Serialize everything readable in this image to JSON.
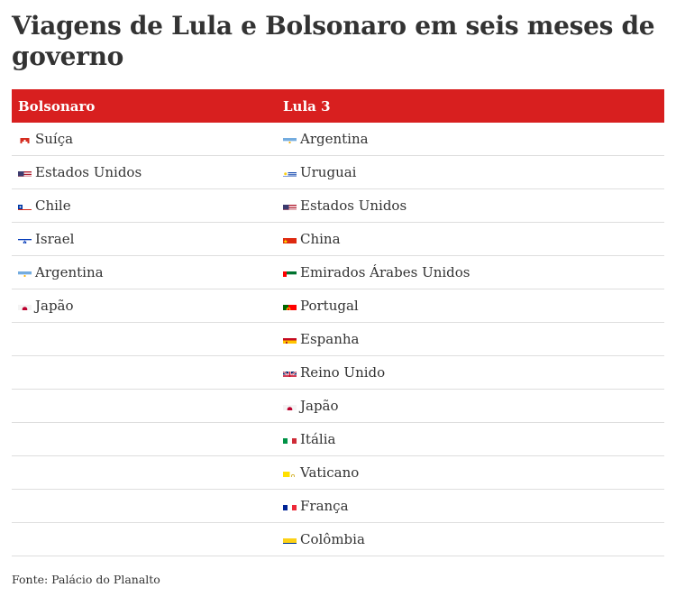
{
  "title": "Viagens de Lula e Bolsonaro em seis meses de governo",
  "columns": [
    "Bolsonaro",
    "Lula 3"
  ],
  "rows": [
    {
      "bolsonaro": {
        "flag": "switzerland-flag-icon",
        "country": "Suíça"
      },
      "lula": {
        "flag": "argentina-flag-icon",
        "country": "Argentina"
      }
    },
    {
      "bolsonaro": {
        "flag": "usa-flag-icon",
        "country": "Estados Unidos"
      },
      "lula": {
        "flag": "uruguay-flag-icon",
        "country": "Uruguai"
      }
    },
    {
      "bolsonaro": {
        "flag": "chile-flag-icon",
        "country": "Chile"
      },
      "lula": {
        "flag": "usa-flag-icon",
        "country": "Estados Unidos"
      }
    },
    {
      "bolsonaro": {
        "flag": "israel-flag-icon",
        "country": "Israel"
      },
      "lula": {
        "flag": "china-flag-icon",
        "country": "China"
      }
    },
    {
      "bolsonaro": {
        "flag": "argentina-flag-icon",
        "country": "Argentina"
      },
      "lula": {
        "flag": "uae-flag-icon",
        "country": "Emirados Árabes Unidos"
      }
    },
    {
      "bolsonaro": {
        "flag": "japan-flag-icon",
        "country": "Japão"
      },
      "lula": {
        "flag": "portugal-flag-icon",
        "country": "Portugal"
      }
    },
    {
      "bolsonaro": null,
      "lula": {
        "flag": "spain-flag-icon",
        "country": "Espanha"
      }
    },
    {
      "bolsonaro": null,
      "lula": {
        "flag": "uk-flag-icon",
        "country": "Reino Unido"
      }
    },
    {
      "bolsonaro": null,
      "lula": {
        "flag": "japan-flag-icon",
        "country": "Japão"
      }
    },
    {
      "bolsonaro": null,
      "lula": {
        "flag": "italy-flag-icon",
        "country": "Itália"
      }
    },
    {
      "bolsonaro": null,
      "lula": {
        "flag": "vatican-flag-icon",
        "country": "Vaticano"
      }
    },
    {
      "bolsonaro": null,
      "lula": {
        "flag": "france-flag-icon",
        "country": "França"
      }
    },
    {
      "bolsonaro": null,
      "lula": {
        "flag": "colombia-flag-icon",
        "country": "Colômbia"
      }
    }
  ],
  "header_color": "#d81f1f",
  "source": "Fonte: Palácio do Planalto"
}
